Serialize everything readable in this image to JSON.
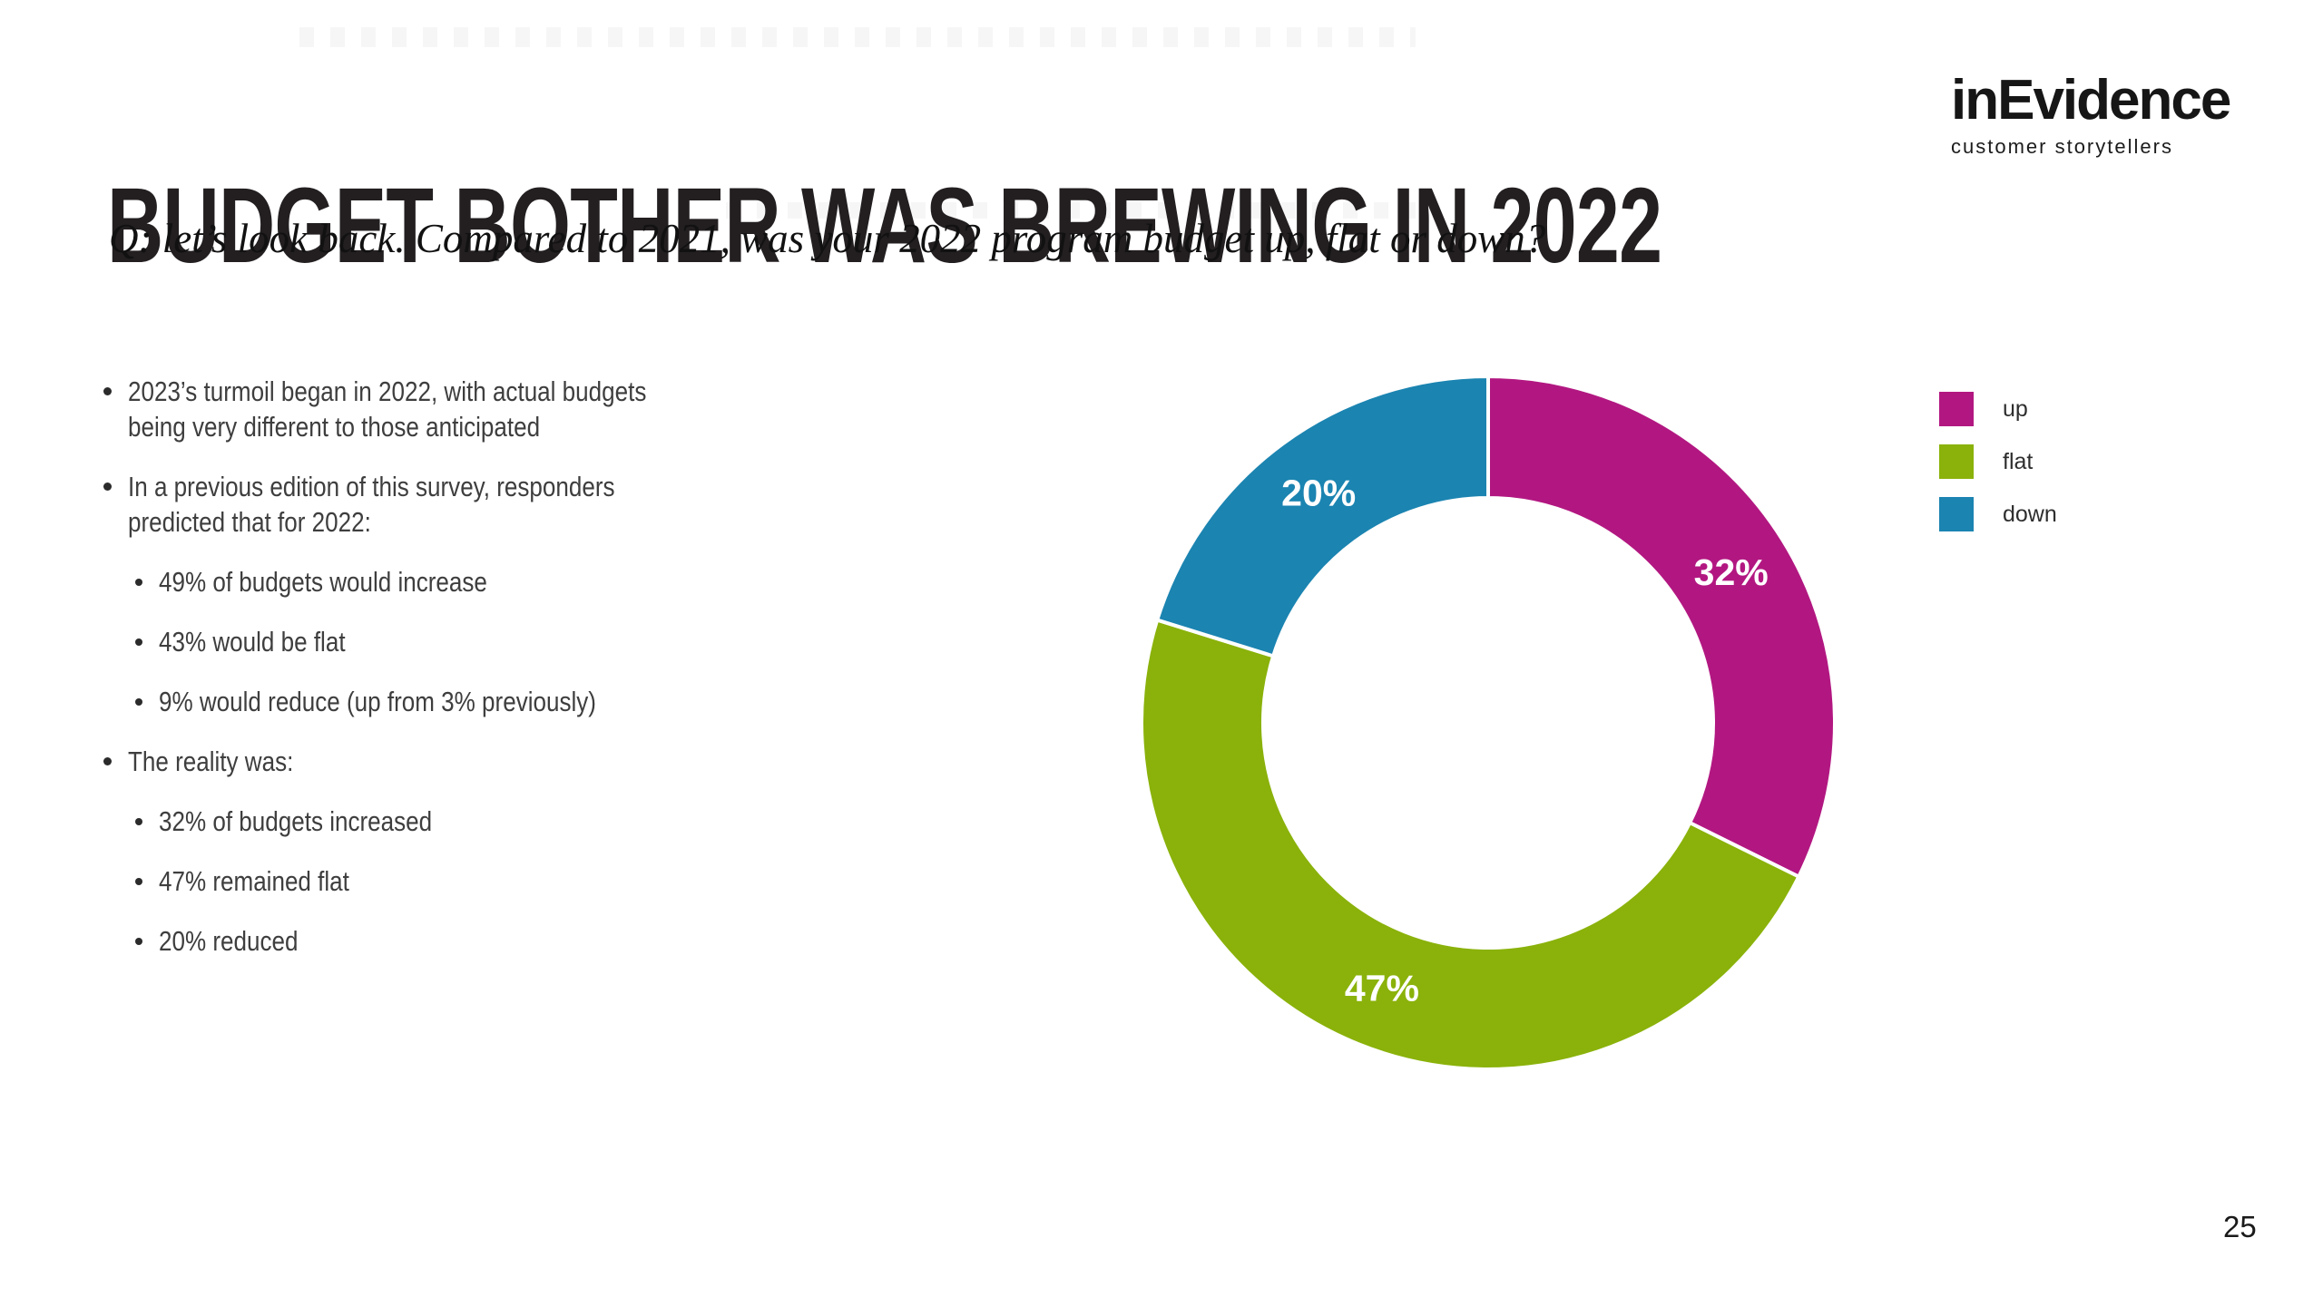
{
  "slide": {
    "title": "BUDGET BOTHER WAS BREWING IN 2022",
    "subtitle": "Q: let’s look back. Compared to 2021, was your 2022 program budget up, flat or down?",
    "page_number": "25"
  },
  "logo": {
    "name": "inEvidence",
    "tagline": "customer storytellers"
  },
  "bullets": [
    {
      "level": 1,
      "text": "2023’s turmoil began in 2022, with actual budgets\nbeing very different to those anticipated"
    },
    {
      "level": 1,
      "text": "In a previous edition of this survey, responders\npredicted that for 2022:"
    },
    {
      "level": 2,
      "text": "49% of budgets would increase"
    },
    {
      "level": 2,
      "text": "43% would be flat"
    },
    {
      "level": 2,
      "text": "9% would reduce (up from 3% previously)"
    },
    {
      "level": 1,
      "text": "The reality was:"
    },
    {
      "level": 2,
      "text": "32% of budgets increased"
    },
    {
      "level": 2,
      "text": "47% remained flat"
    },
    {
      "level": 2,
      "text": "20% reduced"
    }
  ],
  "chart_data": {
    "type": "pie",
    "subtype": "donut",
    "title": "",
    "categories": [
      "up",
      "flat",
      "down"
    ],
    "values": [
      32,
      47,
      20
    ],
    "labels": [
      "32%",
      "47%",
      "20%"
    ],
    "colors": [
      "#b21781",
      "#8ab20a",
      "#1b84b1"
    ],
    "start_angle_deg": 0,
    "direction": "clockwise",
    "inner_radius_ratio": 0.65,
    "separator_color": "#ffffff",
    "legend_position": "right",
    "legend": [
      {
        "label": "up",
        "color": "#b21781"
      },
      {
        "label": "flat",
        "color": "#8ab20a"
      },
      {
        "label": "down",
        "color": "#1b84b1"
      }
    ]
  }
}
